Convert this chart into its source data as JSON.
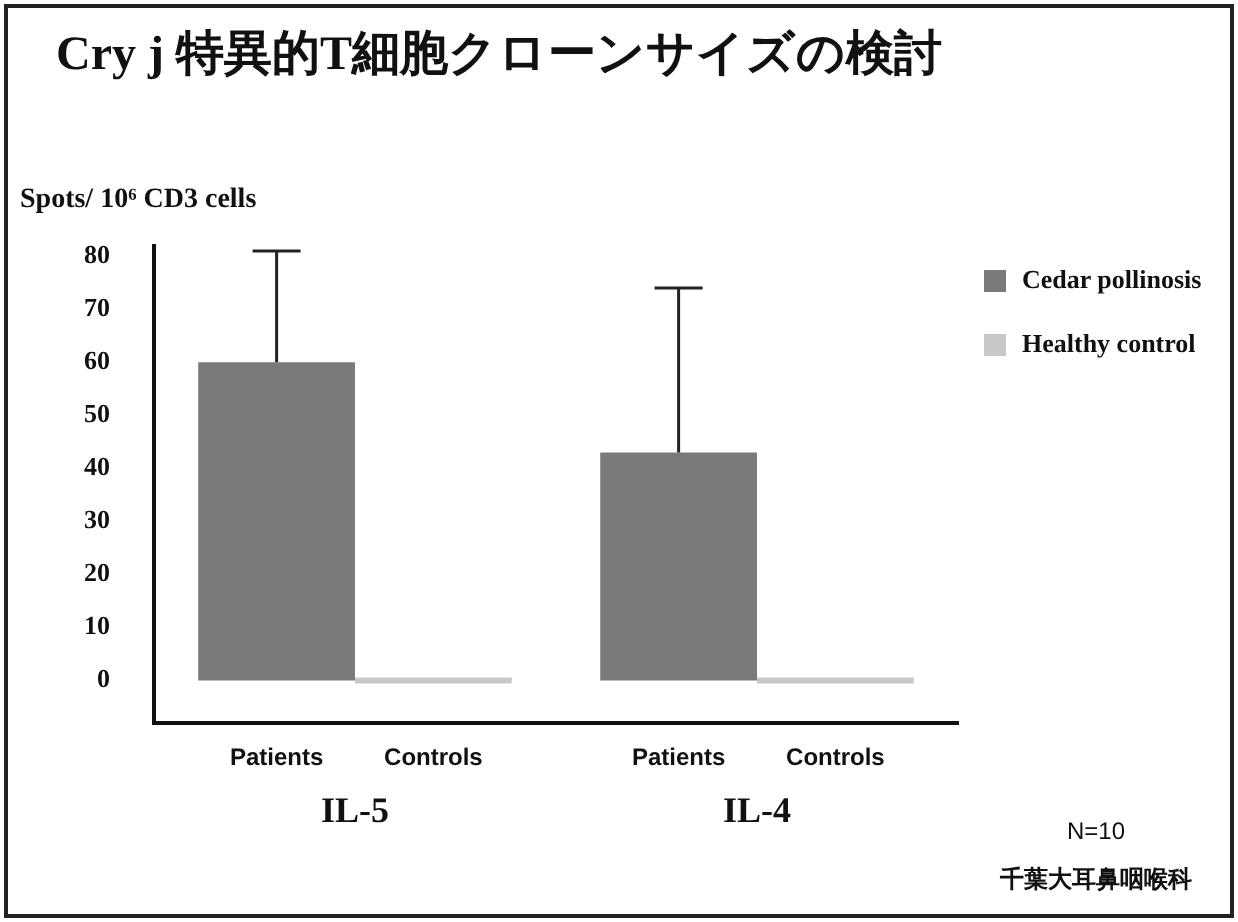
{
  "chart_data": {
    "type": "bar",
    "title": "Cry j 特異的T細胞クローンサイズの検討",
    "ylabel": "Spots/ 10⁶ CD3 cells",
    "categories": [
      "IL-5",
      "IL-4"
    ],
    "series": [
      {
        "name": "Cedar pollinosis",
        "color": "#7a7a7a",
        "values": [
          60,
          43
        ],
        "errors": [
          [
            60,
            81
          ],
          [
            43,
            74
          ]
        ]
      },
      {
        "name": "Healthy control",
        "color": "#c8c8c8",
        "values": [
          0,
          0
        ]
      }
    ],
    "ylim": [
      -8,
      82
    ],
    "yticks": [
      0,
      10,
      20,
      30,
      40,
      50,
      60,
      70,
      80
    ],
    "grid": false,
    "legend": "top right",
    "annotations": [
      "Patients",
      "Controls",
      "Patients",
      "Controls",
      "N=10",
      "千葉大耳鼻咽喉科"
    ]
  }
}
